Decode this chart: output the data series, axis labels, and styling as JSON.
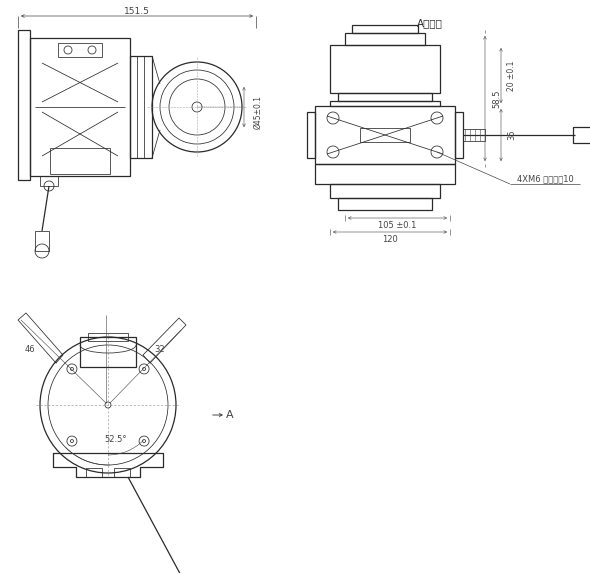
{
  "bg_color": "#ffffff",
  "lc": "#2a2a2a",
  "dc": "#444444",
  "tlw": 0.55,
  "mlw": 0.9,
  "annotations": {
    "top_dim": "151.5",
    "dia_label": "Ø45±0.1",
    "title_right": "A向旋转",
    "dim_585": "58.5",
    "dim_20": "20 ±0.1",
    "dim_35": "35",
    "screw_label": "4XM6 螺纹深度10",
    "dim_105": "105 ±0.1",
    "dim_120": "120",
    "arrow_A": "A",
    "dim_46": "46",
    "dim_32": "32",
    "dim_525": "52.5°"
  }
}
